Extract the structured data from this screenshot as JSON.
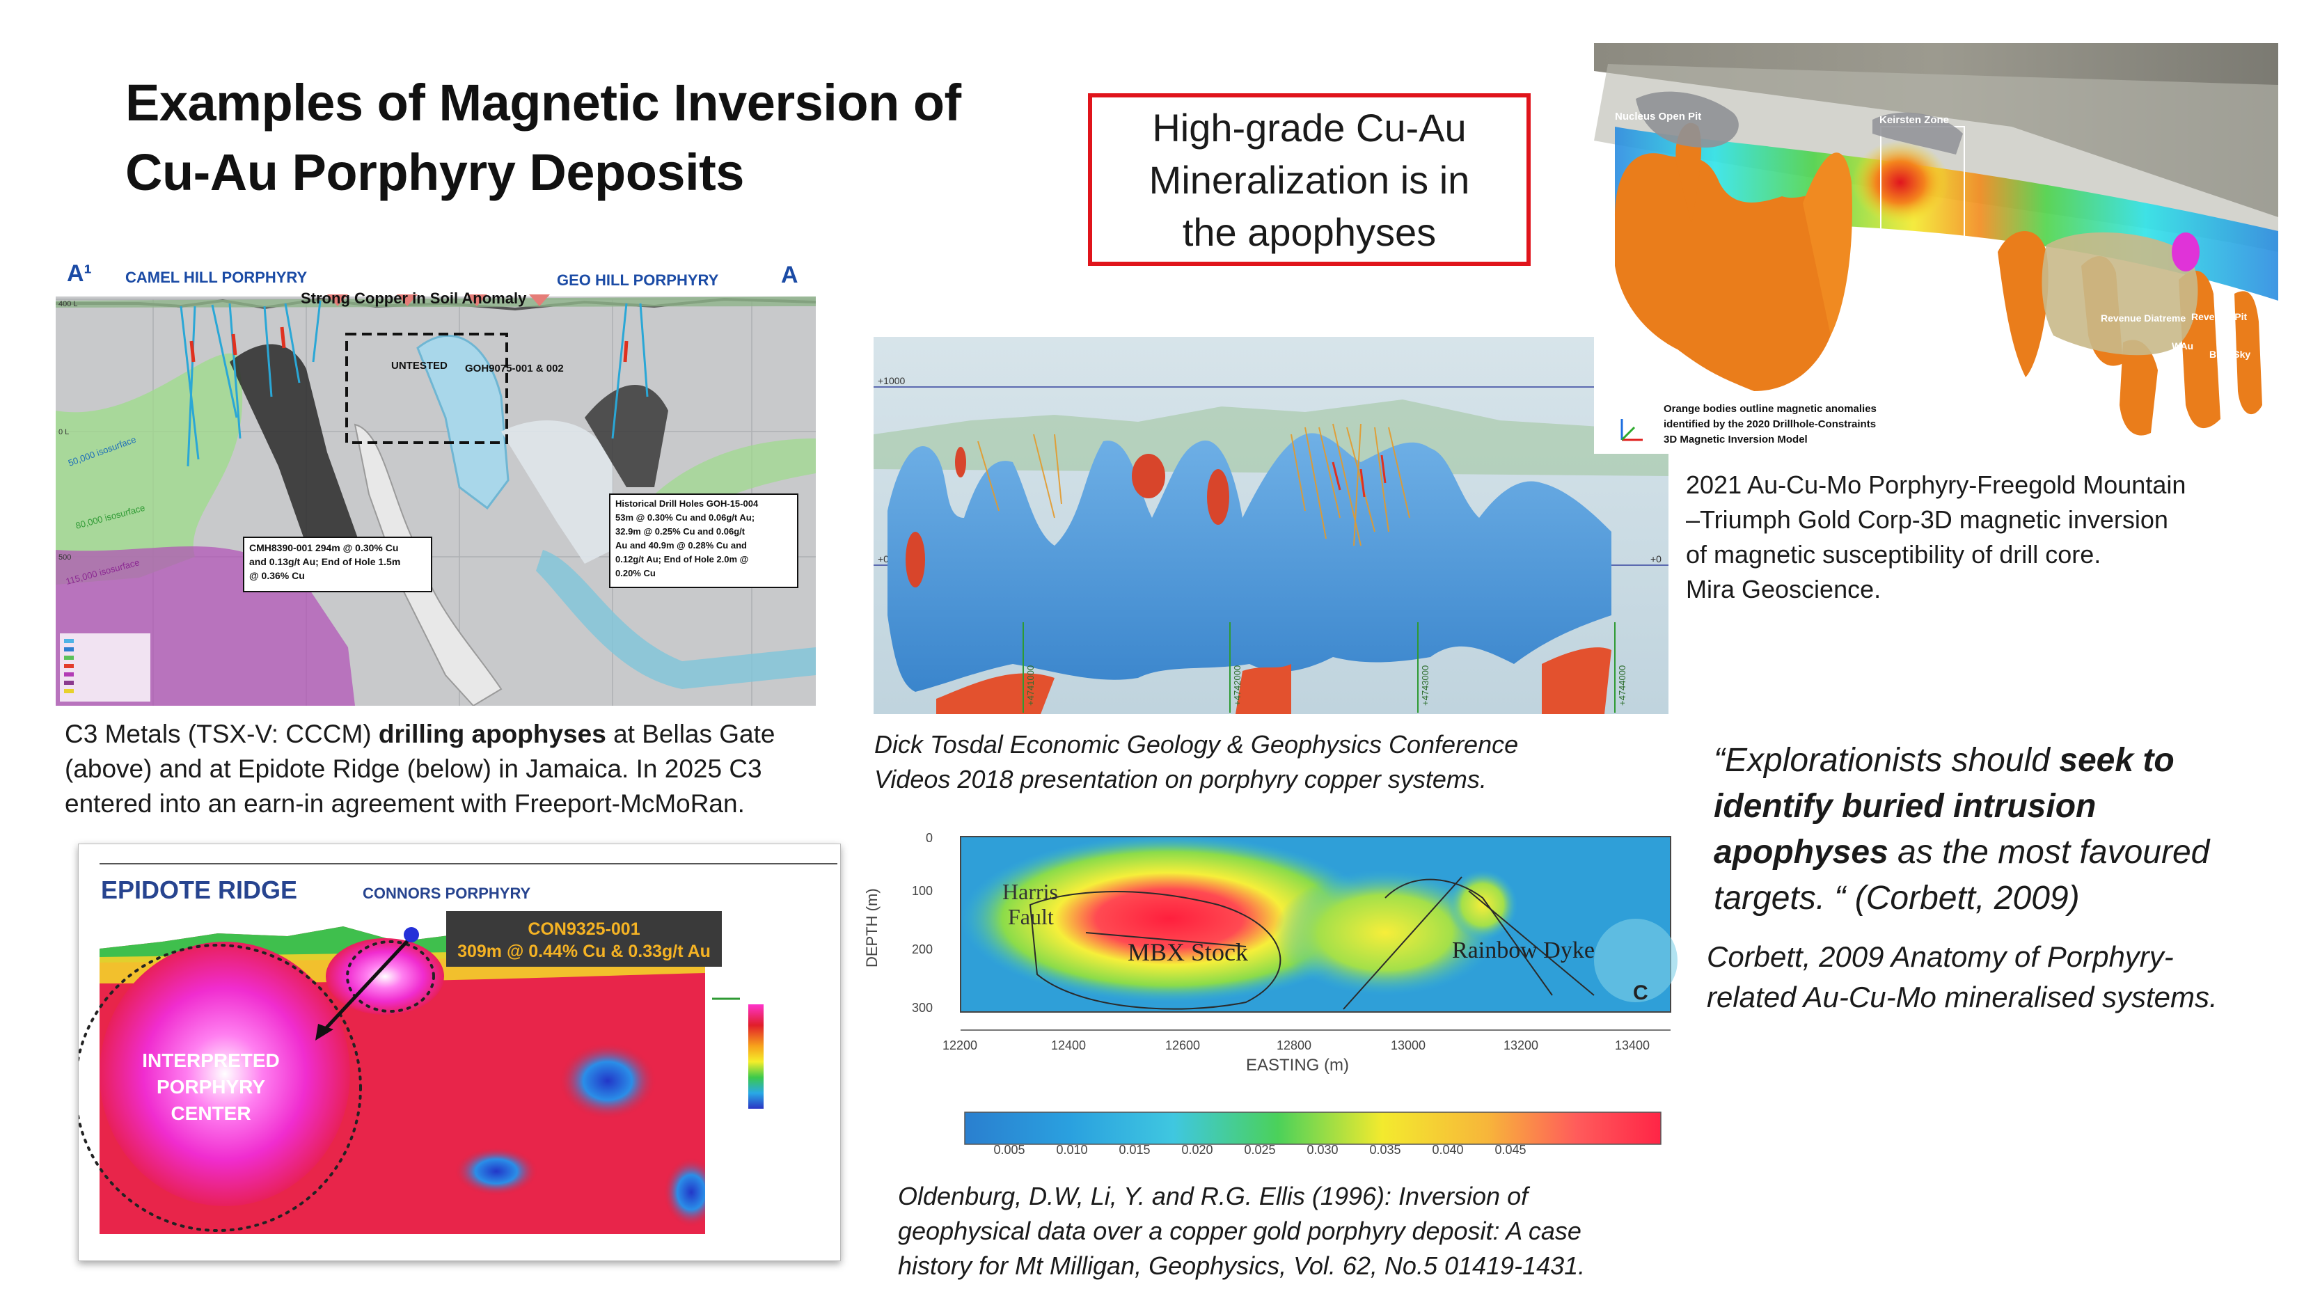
{
  "slide": {
    "title_line1": "Examples of Magnetic Inversion of",
    "title_line2": "Cu-Au Porphyry Deposits",
    "callout_lines": [
      "High-grade Cu-Au",
      "Mineralization is in",
      "the apophyses"
    ]
  },
  "figures": {
    "camel_hill": {
      "label_a1": "A¹",
      "label_a": "A",
      "left_name": "CAMEL HILL PORPHYRY",
      "right_name": "GEO HILL PORPHYRY",
      "soil_label": "Strong Copper in Soil Anomaly",
      "untested": "UNTESTED",
      "goh_label": "GOH9075-001 & 002",
      "iso_50": "50,000 isosurface",
      "iso_80": "80,000 isosurface",
      "iso_115": "115,000 isosurface",
      "depth_400": "400 L",
      "depth_0": "0 L",
      "depth_500": "500",
      "box1_lines": [
        "CMH8390-001 294m @ 0.30% Cu",
        "and 0.13g/t Au; End of Hole 1.5m",
        "@ 0.36% Cu"
      ],
      "box2_lines": [
        "Historical Drill Holes GOH-15-004",
        "53m @ 0.30% Cu and 0.06g/t Au;",
        "32.9m @ 0.25% Cu and 0.06g/t",
        "Au and 40.9m @ 0.28% Cu and",
        "0.12g/t Au; End of Hole 2.0m @",
        "0.20% Cu"
      ]
    },
    "epidote": {
      "title": "EPIDOTE RIDGE",
      "subtitle": "CONNORS PORPHYRY",
      "hole": "CON9325-001",
      "intercept": "309m @ 0.44% Cu & 0.33g/t Au",
      "center_lines": [
        "INTERPRETED",
        "PORPHYRY",
        "CENTER"
      ]
    },
    "tosdal": {
      "tick_top": "+1000",
      "tick_mid": "+0",
      "tick_right": "+0",
      "bottom_ticks": [
        "+4741000",
        "+4742000",
        "+4743000",
        "+4744000"
      ]
    },
    "freegold": {
      "nucleus": "Nucleus Open Pit",
      "keirsten": "Keirsten Zone",
      "revenue_diatreme": "Revenue Diatreme",
      "revenue_pit": "Revenue Pit",
      "wau": "WAu",
      "blue_sky": "Blue Sky",
      "legend_lines": [
        "Orange bodies outline magnetic anomalies",
        "identified by the 2020 Drillhole-Constraints",
        "3D Magnetic Inversion Model"
      ]
    },
    "milligan": {
      "harris": "Harris",
      "fault": "Fault",
      "mbx": "MBX Stock",
      "rainbow": "Rainbow Dyke",
      "panel_letter": "C",
      "y_label": "DEPTH (m)",
      "y_ticks": [
        "0",
        "100",
        "200",
        "300"
      ],
      "x_label": "EASTING (m)",
      "x_ticks": [
        "12200",
        "12400",
        "12600",
        "12800",
        "13000",
        "13200",
        "13400"
      ],
      "scale_ticks": [
        "0.005",
        "0.010",
        "0.015",
        "0.020",
        "0.025",
        "0.030",
        "0.035",
        "0.040",
        "0.045"
      ]
    }
  },
  "captions": {
    "c3_lines": [
      {
        "pre": "C3 Metals (TSX-V: CCCM) ",
        "bold": "drilling apophyses",
        "post": " at Bellas Gate"
      },
      {
        "pre": "(above) and at Epidote Ridge (below) in Jamaica. In 2025 C3",
        "bold": "",
        "post": ""
      },
      {
        "pre": "entered into an earn-in agreement with Freeport-McMoRan.",
        "bold": "",
        "post": ""
      }
    ],
    "tosdal_lines": [
      "Dick Tosdal Economic Geology & Geophysics Conference",
      "Videos 2018 presentation on porphyry copper systems."
    ],
    "freegold_lines": [
      "2021 Au-Cu-Mo Porphyry-Freegold Mountain",
      "–Triumph Gold Corp-3D magnetic inversion",
      "of magnetic susceptibility of drill core.",
      "Mira Geoscience."
    ],
    "oldenburg_lines": [
      "Oldenburg, D.W, Li, Y. and R.G. Ellis (1996): Inversion of",
      "geophysical data over a copper gold porphyry deposit: A case",
      "history for Mt Milligan, Geophysics, Vol. 62, No.5 01419-1431."
    ],
    "quote": {
      "l1_pre": "“Explorationists should ",
      "l1_bold": "seek to",
      "l2_bold": "identify buried intrusion",
      "l3_bold": "apophyses",
      "l3_post": " as the most favoured",
      "l4": "targets. “ (Corbett, 2009)"
    },
    "corbett_lines": [
      "Corbett, 2009 Anatomy of Porphyry-",
      "related Au-Cu-Mo mineralised systems."
    ]
  }
}
